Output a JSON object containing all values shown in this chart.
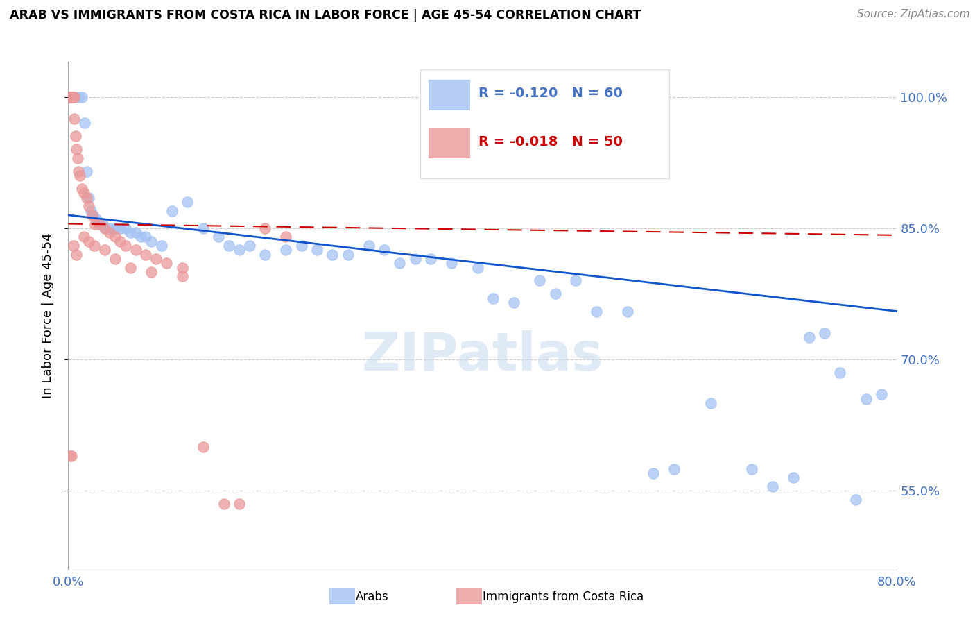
{
  "title": "ARAB VS IMMIGRANTS FROM COSTA RICA IN LABOR FORCE | AGE 45-54 CORRELATION CHART",
  "source": "Source: ZipAtlas.com",
  "ylabel": "In Labor Force | Age 45-54",
  "xlim": [
    0.0,
    80.0
  ],
  "ylim": [
    46.0,
    104.0
  ],
  "yticks": [
    55.0,
    70.0,
    85.0,
    100.0
  ],
  "ytick_labels": [
    "55.0%",
    "70.0%",
    "85.0%",
    "100.0%"
  ],
  "legend_r_blue": "R = -0.120",
  "legend_n_blue": "N = 60",
  "legend_r_pink": "R = -0.018",
  "legend_n_pink": "N = 50",
  "blue_color": "#a4c2f4",
  "pink_color": "#ea9999",
  "blue_line_color": "#1155cc",
  "pink_line_color": "#cc0000",
  "watermark": "ZIPatlas",
  "blue_trend": [
    86.5,
    75.5
  ],
  "pink_trend": [
    85.5,
    84.2
  ],
  "blue_x": [
    1.0,
    1.3,
    1.6,
    1.8,
    2.0,
    2.2,
    2.4,
    2.7,
    3.0,
    3.3,
    3.6,
    4.0,
    4.5,
    5.0,
    5.5,
    6.0,
    6.5,
    7.0,
    7.5,
    8.0,
    9.0,
    10.0,
    11.5,
    13.0,
    14.5,
    15.5,
    16.5,
    17.5,
    19.0,
    21.0,
    22.5,
    24.0,
    25.5,
    27.0,
    29.0,
    30.5,
    32.0,
    33.5,
    35.0,
    37.0,
    39.5,
    41.0,
    43.0,
    45.5,
    47.0,
    49.0,
    51.0,
    54.0,
    56.5,
    58.5,
    62.0,
    66.0,
    68.0,
    70.0,
    71.5,
    73.0,
    74.5,
    76.0,
    77.0,
    78.5
  ],
  "blue_y": [
    100.0,
    100.0,
    97.0,
    91.5,
    88.5,
    87.0,
    86.5,
    86.0,
    85.5,
    85.5,
    85.0,
    85.0,
    85.0,
    85.0,
    85.0,
    84.5,
    84.5,
    84.0,
    84.0,
    83.5,
    83.0,
    87.0,
    88.0,
    85.0,
    84.0,
    83.0,
    82.5,
    83.0,
    82.0,
    82.5,
    83.0,
    82.5,
    82.0,
    82.0,
    83.0,
    82.5,
    81.0,
    81.5,
    81.5,
    81.0,
    80.5,
    77.0,
    76.5,
    79.0,
    77.5,
    79.0,
    75.5,
    75.5,
    57.0,
    57.5,
    65.0,
    57.5,
    55.5,
    56.5,
    72.5,
    73.0,
    68.5,
    54.0,
    65.5,
    66.0
  ],
  "pink_x": [
    0.1,
    0.15,
    0.2,
    0.25,
    0.3,
    0.35,
    0.4,
    0.45,
    0.5,
    0.55,
    0.6,
    0.7,
    0.8,
    0.9,
    1.0,
    1.1,
    1.3,
    1.5,
    1.8,
    2.0,
    2.3,
    2.6,
    3.0,
    3.5,
    4.0,
    4.5,
    5.0,
    5.5,
    6.5,
    7.5,
    8.5,
    9.5,
    11.0,
    13.0,
    15.0,
    16.5,
    19.0,
    21.0,
    0.2,
    0.3,
    0.5,
    0.8,
    1.5,
    2.0,
    2.5,
    3.5,
    4.5,
    6.0,
    8.0,
    11.0
  ],
  "pink_y": [
    100.0,
    100.0,
    100.0,
    100.0,
    100.0,
    100.0,
    100.0,
    100.0,
    100.0,
    100.0,
    97.5,
    95.5,
    94.0,
    93.0,
    91.5,
    91.0,
    89.5,
    89.0,
    88.5,
    87.5,
    86.5,
    85.5,
    85.5,
    85.0,
    84.5,
    84.0,
    83.5,
    83.0,
    82.5,
    82.0,
    81.5,
    81.0,
    80.5,
    60.0,
    53.5,
    53.5,
    85.0,
    84.0,
    59.0,
    59.0,
    83.0,
    82.0,
    84.0,
    83.5,
    83.0,
    82.5,
    81.5,
    80.5,
    80.0,
    79.5
  ]
}
